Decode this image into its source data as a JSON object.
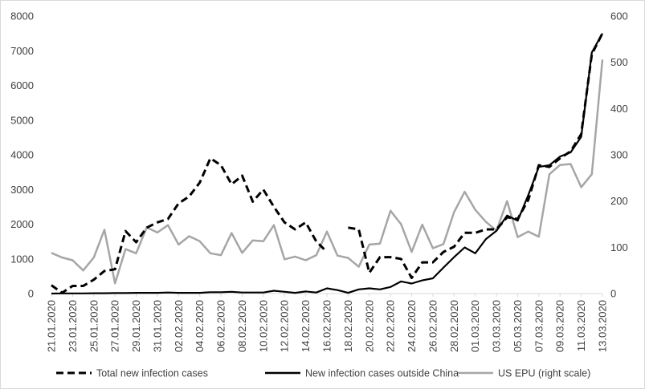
{
  "chart_data": {
    "type": "line",
    "title": "",
    "xlabel": "",
    "ylabel": "",
    "ylim": [
      0,
      8000
    ],
    "y2lim": [
      0,
      600
    ],
    "yticks": [
      "0",
      "1000",
      "2000",
      "3000",
      "4000",
      "5000",
      "6000",
      "7000",
      "8000"
    ],
    "y2ticks": [
      "0",
      "100",
      "200",
      "300",
      "400",
      "500",
      "600"
    ],
    "grid": false,
    "legend_position": "bottom",
    "x": [
      "21.01.2020",
      "22.01.2020",
      "23.01.2020",
      "24.01.2020",
      "25.01.2020",
      "26.01.2020",
      "27.01.2020",
      "28.01.2020",
      "29.01.2020",
      "30.01.2020",
      "31.01.2020",
      "01.02.2020",
      "02.02.2020",
      "03.02.2020",
      "04.02.2020",
      "05.02.2020",
      "06.02.2020",
      "07.02.2020",
      "08.02.2020",
      "09.02.2020",
      "10.02.2020",
      "11.02.2020",
      "12.02.2020",
      "13.02.2020",
      "14.02.2020",
      "15.02.2020",
      "16.02.2020",
      "17.02.2020",
      "18.02.2020",
      "19.02.2020",
      "20.02.2020",
      "21.02.2020",
      "22.02.2020",
      "23.02.2020",
      "24.02.2020",
      "25.02.2020",
      "26.02.2020",
      "27.02.2020",
      "28.02.2020",
      "29.02.2020",
      "01.03.2020",
      "02.03.2020",
      "03.03.2020",
      "04.03.2020",
      "05.03.2020",
      "06.03.2020",
      "07.03.2020",
      "08.03.2020",
      "09.03.2020",
      "10.03.2020",
      "11.03.2020",
      "12.03.2020",
      "13.03.2020"
    ],
    "xtick_labels": [
      "21.01.2020",
      "23.01.2020",
      "25.01.2020",
      "27.01.2020",
      "29.01.2020",
      "31.01.2020",
      "02.02.2020",
      "04.02.2020",
      "06.02.2020",
      "08.02.2020",
      "10.02.2020",
      "12.02.2020",
      "14.02.2020",
      "16.02.2020",
      "18.02.2020",
      "20.02.2020",
      "22.02.2020",
      "24.02.2020",
      "26.02.2020",
      "28.02.2020",
      "01.03.2020",
      "03.03.2020",
      "05.03.2020",
      "07.03.2020",
      "09.03.2020",
      "11.03.2020",
      "13.03.2020"
    ],
    "series": [
      {
        "name": "Total new infection cases",
        "axis": "left",
        "style": "dashed",
        "color": "#000000",
        "values": [
          240,
          20,
          220,
          220,
          400,
          650,
          700,
          1800,
          1480,
          1900,
          2050,
          2150,
          2600,
          2800,
          3200,
          3900,
          3700,
          3150,
          3400,
          2650,
          3000,
          2500,
          2050,
          1850,
          2050,
          1500,
          1200,
          null,
          1900,
          1850,
          600,
          1050,
          1050,
          1000,
          450,
          900,
          900,
          1200,
          1350,
          1750,
          1750,
          1850,
          1850,
          2200,
          2150,
          2700,
          3700,
          3650,
          3900,
          4100,
          4600,
          6900,
          7500
        ]
      },
      {
        "name": "New infection cases outside China",
        "axis": "left",
        "style": "solid",
        "color": "#000000",
        "values": [
          0,
          5,
          5,
          5,
          10,
          10,
          15,
          15,
          20,
          20,
          20,
          30,
          20,
          20,
          20,
          40,
          40,
          50,
          30,
          30,
          30,
          80,
          50,
          20,
          60,
          30,
          150,
          100,
          20,
          120,
          150,
          120,
          190,
          350,
          290,
          380,
          440,
          750,
          1050,
          1330,
          1160,
          1570,
          1810,
          2250,
          2100,
          2840,
          3650,
          3700,
          3950,
          4070,
          4520,
          6950,
          7500
        ]
      },
      {
        "name": "US EPU (right scale)",
        "axis": "right",
        "style": "solid",
        "color": "#a6a6a6",
        "values": [
          88,
          78,
          72,
          50,
          78,
          138,
          22,
          96,
          87,
          143,
          132,
          148,
          106,
          124,
          113,
          87,
          83,
          131,
          88,
          115,
          113,
          148,
          74,
          80,
          72,
          83,
          134,
          82,
          77,
          58,
          106,
          108,
          179,
          150,
          90,
          149,
          98,
          107,
          176,
          220,
          181,
          155,
          136,
          200,
          122,
          134,
          123,
          258,
          278,
          280,
          230,
          258,
          506
        ]
      }
    ]
  }
}
